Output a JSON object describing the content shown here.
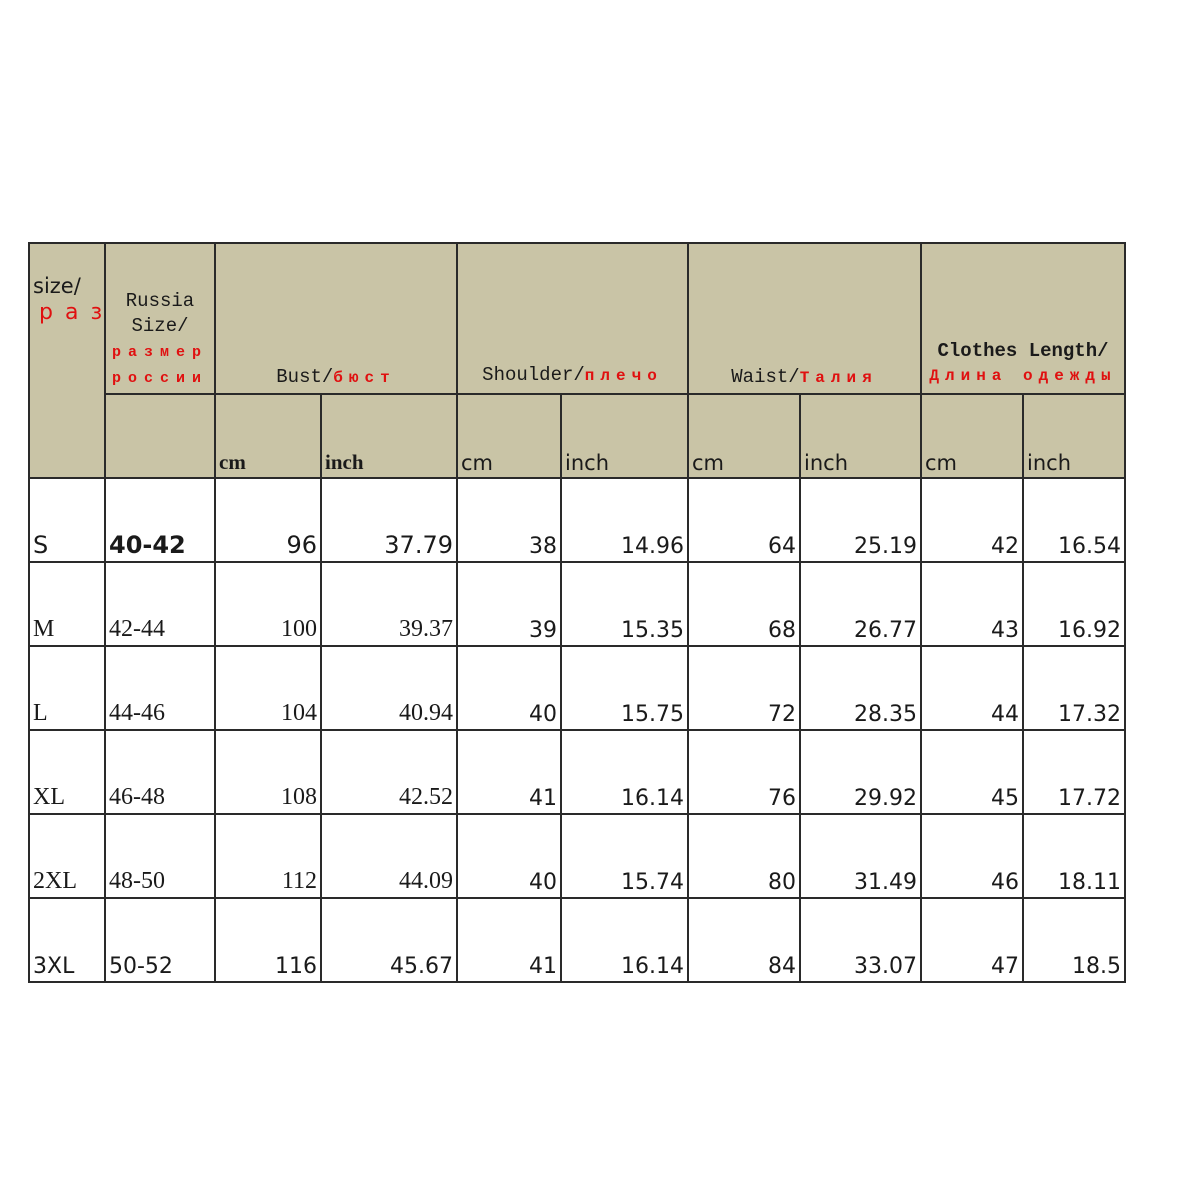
{
  "header": {
    "size_en": "size/",
    "size_ru": "размер",
    "russia_en": "Russia Size/",
    "russia_ru": "размер россии",
    "bust_en": "Bust/",
    "bust_ru": "бюст",
    "shoulder_en": "Shoulder/",
    "shoulder_ru": "плечо",
    "waist_en": "Waist/",
    "waist_ru": "Талия",
    "length_en": "Clothes Length/",
    "length_ru": "Длина одежды",
    "unit_cm": "cm",
    "unit_inch": "inch"
  },
  "rows": [
    {
      "size": "S",
      "russia": "40-42",
      "bust_cm": "96",
      "bust_in": "37.79",
      "shoulder_cm": "38",
      "shoulder_in": "14.96",
      "waist_cm": "64",
      "waist_in": "25.19",
      "length_cm": "42",
      "length_in": "16.54"
    },
    {
      "size": "M",
      "russia": "42-44",
      "bust_cm": "100",
      "bust_in": "39.37",
      "shoulder_cm": "39",
      "shoulder_in": "15.35",
      "waist_cm": "68",
      "waist_in": "26.77",
      "length_cm": "43",
      "length_in": "16.92"
    },
    {
      "size": "L",
      "russia": "44-46",
      "bust_cm": "104",
      "bust_in": "40.94",
      "shoulder_cm": "40",
      "shoulder_in": "15.75",
      "waist_cm": "72",
      "waist_in": "28.35",
      "length_cm": "44",
      "length_in": "17.32"
    },
    {
      "size": "XL",
      "russia": "46-48",
      "bust_cm": "108",
      "bust_in": "42.52",
      "shoulder_cm": "41",
      "shoulder_in": "16.14",
      "waist_cm": "76",
      "waist_in": "29.92",
      "length_cm": "45",
      "length_in": "17.72"
    },
    {
      "size": "2XL",
      "russia": "48-50",
      "bust_cm": "112",
      "bust_in": "44.09",
      "shoulder_cm": "40",
      "shoulder_in": "15.74",
      "waist_cm": "80",
      "waist_in": "31.49",
      "length_cm": "46",
      "length_in": "18.11"
    },
    {
      "size": "3XL",
      "russia": "50-52",
      "bust_cm": "116",
      "bust_in": "45.67",
      "shoulder_cm": "41",
      "shoulder_in": "16.14",
      "waist_cm": "84",
      "waist_in": "33.07",
      "length_cm": "47",
      "length_in": "18.5"
    }
  ]
}
